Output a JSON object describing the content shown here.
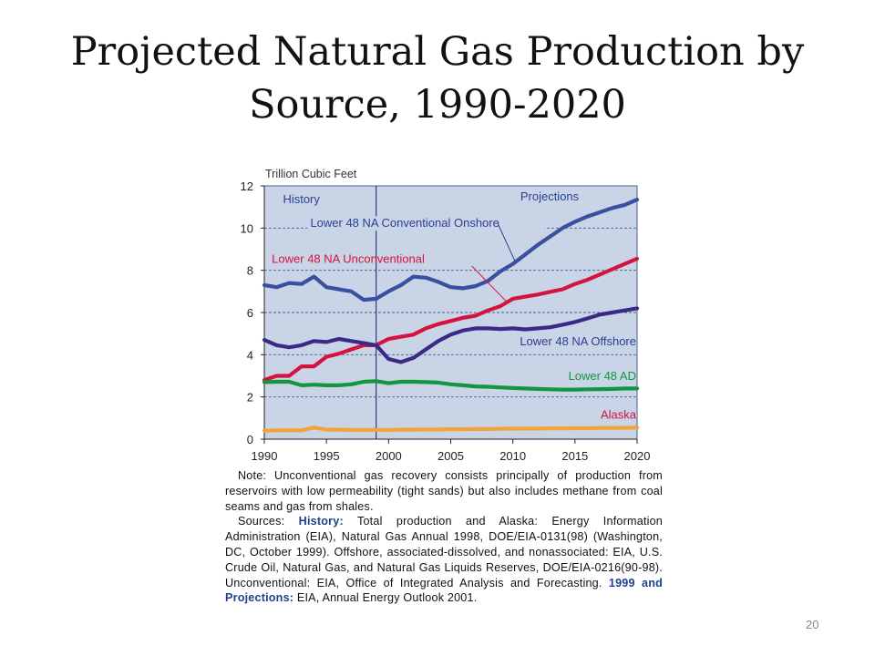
{
  "slide": {
    "title_line1": "Projected Natural Gas Production by",
    "title_line2": "Source, 1990-2020",
    "page_number": "20"
  },
  "chart_data": {
    "type": "line",
    "ylabel": "Trillion Cubic Feet",
    "xlim": [
      1990,
      2020
    ],
    "ylim": [
      0,
      12
    ],
    "x_ticks": [
      1990,
      1995,
      2000,
      2005,
      2010,
      2015,
      2020
    ],
    "y_ticks": [
      0,
      2,
      4,
      6,
      8,
      10,
      12
    ],
    "grid": "horizontal dashed",
    "history_end": 1999,
    "region_labels": {
      "history": "History",
      "projections": "Projections"
    },
    "colors": {
      "background": "#c9d5e6",
      "conventional_onshore": "#3a4fa0",
      "unconventional": "#d4133f",
      "offshore": "#3a2a86",
      "ad": "#12963f",
      "alaska": "#f2a33a",
      "label_onshore": "#2a3f95",
      "label_unconventional": "#d4133f",
      "label_offshore": "#2a3f95",
      "label_ad": "#12963f",
      "label_alaska": "#d4133f"
    },
    "series": [
      {
        "key": "conventional_onshore",
        "name": "Lower 48 NA Conventional Onshore",
        "x": [
          1990,
          1991,
          1992,
          1993,
          1994,
          1995,
          1996,
          1997,
          1998,
          1999,
          2000,
          2001,
          2002,
          2003,
          2004,
          2005,
          2006,
          2007,
          2008,
          2009,
          2010,
          2011,
          2012,
          2013,
          2014,
          2015,
          2016,
          2017,
          2018,
          2019,
          2020
        ],
        "values": [
          7.3,
          7.2,
          7.4,
          7.35,
          7.7,
          7.2,
          7.1,
          7.0,
          6.6,
          6.65,
          7.0,
          7.3,
          7.7,
          7.65,
          7.45,
          7.2,
          7.15,
          7.25,
          7.5,
          7.95,
          8.3,
          8.75,
          9.2,
          9.6,
          10.0,
          10.3,
          10.55,
          10.75,
          10.95,
          11.1,
          11.35
        ]
      },
      {
        "key": "unconventional",
        "name": "Lower 48 NA Unconventional",
        "x": [
          1990,
          1991,
          1992,
          1993,
          1994,
          1995,
          1996,
          1997,
          1998,
          1999,
          2000,
          2001,
          2002,
          2003,
          2004,
          2005,
          2006,
          2007,
          2008,
          2009,
          2010,
          2011,
          2012,
          2013,
          2014,
          2015,
          2016,
          2017,
          2018,
          2019,
          2020
        ],
        "values": [
          2.8,
          3.0,
          3.0,
          3.45,
          3.45,
          3.9,
          4.05,
          4.25,
          4.45,
          4.45,
          4.75,
          4.85,
          4.95,
          5.25,
          5.45,
          5.6,
          5.75,
          5.85,
          6.1,
          6.3,
          6.65,
          6.75,
          6.85,
          6.98,
          7.1,
          7.35,
          7.55,
          7.8,
          8.05,
          8.3,
          8.55
        ]
      },
      {
        "key": "offshore",
        "name": "Lower 48 NA Offshore",
        "x": [
          1990,
          1991,
          1992,
          1993,
          1994,
          1995,
          1996,
          1997,
          1998,
          1999,
          2000,
          2001,
          2002,
          2003,
          2004,
          2005,
          2006,
          2007,
          2008,
          2009,
          2010,
          2011,
          2012,
          2013,
          2014,
          2015,
          2016,
          2017,
          2018,
          2019,
          2020
        ],
        "values": [
          4.7,
          4.45,
          4.35,
          4.45,
          4.65,
          4.6,
          4.75,
          4.65,
          4.55,
          4.45,
          3.8,
          3.65,
          3.85,
          4.25,
          4.65,
          4.95,
          5.15,
          5.25,
          5.25,
          5.22,
          5.25,
          5.2,
          5.25,
          5.3,
          5.42,
          5.55,
          5.72,
          5.9,
          6.0,
          6.1,
          6.2
        ]
      },
      {
        "key": "ad",
        "name": "Lower 48 AD",
        "x": [
          1990,
          1991,
          1992,
          1993,
          1994,
          1995,
          1996,
          1997,
          1998,
          1999,
          2000,
          2001,
          2002,
          2003,
          2004,
          2005,
          2006,
          2007,
          2008,
          2009,
          2010,
          2011,
          2012,
          2013,
          2014,
          2015,
          2016,
          2017,
          2018,
          2019,
          2020
        ],
        "values": [
          2.7,
          2.72,
          2.72,
          2.55,
          2.58,
          2.55,
          2.55,
          2.6,
          2.72,
          2.75,
          2.65,
          2.72,
          2.72,
          2.7,
          2.68,
          2.6,
          2.55,
          2.5,
          2.48,
          2.45,
          2.42,
          2.4,
          2.38,
          2.36,
          2.35,
          2.35,
          2.36,
          2.37,
          2.38,
          2.4,
          2.4
        ]
      },
      {
        "key": "alaska",
        "name": "Alaska",
        "x": [
          1990,
          1991,
          1992,
          1993,
          1994,
          1995,
          1996,
          1997,
          1998,
          1999,
          2000,
          2001,
          2002,
          2003,
          2004,
          2005,
          2006,
          2007,
          2008,
          2009,
          2010,
          2011,
          2012,
          2013,
          2014,
          2015,
          2016,
          2017,
          2018,
          2019,
          2020
        ],
        "values": [
          0.4,
          0.42,
          0.42,
          0.42,
          0.55,
          0.45,
          0.45,
          0.44,
          0.44,
          0.44,
          0.44,
          0.45,
          0.45,
          0.46,
          0.46,
          0.47,
          0.47,
          0.48,
          0.48,
          0.49,
          0.5,
          0.5,
          0.5,
          0.51,
          0.51,
          0.52,
          0.52,
          0.53,
          0.53,
          0.54,
          0.55
        ]
      }
    ]
  },
  "notes": {
    "note": "Note: Unconventional gas recovery consists principally of production from reservoirs with low permeability (tight sands) but also includes methane from coal seams and gas from shales.",
    "sources_prefix": "Sources: ",
    "history_label": "History:",
    "history_text": " Total production and Alaska: Energy Information Administration (EIA), Natural Gas Annual 1998, DOE/EIA-0131(98) (Washington, DC, October 1999). Offshore, associated-dissolved, and nonassociated: EIA, U.S. Crude Oil, Natural Gas, and Natural Gas Liquids Reserves, DOE/EIA-0216(90-98). Unconventional: EIA, Office of Integrated Analysis and Forecasting. ",
    "projections_label": "1999 and Projections:",
    "projections_text": " EIA, Annual Energy Outlook 2001."
  }
}
